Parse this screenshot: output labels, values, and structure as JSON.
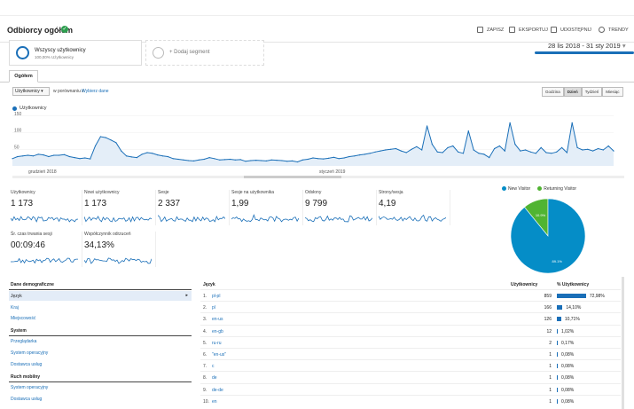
{
  "header": {
    "title": "Odbiorcy ogółem",
    "tools": [
      "ZAPISZ",
      "EKSPORTUJ",
      "UDOSTĘPNIJ",
      "TRENDY"
    ]
  },
  "segments": {
    "active_name": "Wszyscy użytkownicy",
    "active_sub": "100,00% Użytkownicy",
    "add_label": "+ Dodaj segment"
  },
  "date_range": "28 lis 2018 - 31 sty 2019",
  "tabs": [
    "Ogółem"
  ],
  "controls": {
    "metric_select": "Użytkownicy",
    "compare_text": "w porównaniu z",
    "compare_link": "Wybierz dane",
    "periods": [
      "Godzina",
      "Dzień",
      "Tydzień",
      "Miesiąc"
    ],
    "active_period": "Dzień"
  },
  "chart_data": {
    "type": "line",
    "series": [
      {
        "name": "Użytkownicy",
        "values": [
          22,
          28,
          30,
          32,
          30,
          35,
          33,
          28,
          32,
          32,
          34,
          28,
          25,
          22,
          24,
          21,
          60,
          88,
          85,
          78,
          70,
          45,
          30,
          27,
          25,
          35,
          40,
          38,
          33,
          30,
          28,
          22,
          20,
          18,
          16,
          15,
          18,
          20,
          25,
          22,
          18,
          19,
          20,
          18,
          19,
          14,
          16,
          17,
          16,
          15,
          18,
          17,
          16,
          14,
          15,
          12,
          18,
          20,
          24,
          22,
          21,
          23,
          26,
          22,
          24,
          28,
          30,
          33,
          35,
          38,
          42,
          45,
          48,
          50,
          52,
          45,
          40,
          50,
          58,
          48,
          120,
          65,
          42,
          40,
          55,
          60,
          42,
          38,
          105,
          48,
          38,
          35,
          25,
          52,
          60,
          45,
          130,
          65,
          45,
          48,
          42,
          38,
          55,
          40,
          38,
          42,
          55,
          40,
          130,
          55,
          48,
          50,
          45,
          52,
          48,
          60,
          45
        ]
      }
    ],
    "x_ticks": [
      "grudzień 2018",
      "styczeń 2019"
    ],
    "y_ticks": [
      50,
      100,
      150
    ],
    "ylim": [
      0,
      160
    ],
    "grid": true,
    "legend": "top-left"
  },
  "metrics": [
    {
      "label": "Użytkownicy",
      "value": "1 173"
    },
    {
      "label": "Nowi użytkownicy",
      "value": "1 173"
    },
    {
      "label": "Sesje",
      "value": "2 337"
    },
    {
      "label": "Sesje na użytkownika",
      "value": "1,99"
    },
    {
      "label": "Odsłony",
      "value": "9 799"
    },
    {
      "label": "Strony/sesja",
      "value": "4,19"
    },
    {
      "label": "Śr. czas trwania sesji",
      "value": "00:09:46"
    },
    {
      "label": "Współczynnik odrzuceń",
      "value": "34,13%"
    }
  ],
  "pie": {
    "legend": [
      "New Visitor",
      "Returning Visitor"
    ],
    "colors": [
      "#058dc7",
      "#50b432"
    ],
    "values": [
      89.1,
      10.9
    ],
    "labels": [
      "89.1%",
      "10.9%"
    ]
  },
  "dimensions": {
    "demographic_title": "Dane demograficzne",
    "demographic_items": [
      "Język",
      "Kraj",
      "Miejscowość"
    ],
    "system_title": "System",
    "system_items": [
      "Przeglądarka",
      "System operacyjny",
      "Dostawca usług"
    ],
    "mobile_title": "Ruch mobilny",
    "mobile_items": [
      "System operacyjny",
      "Dostawca usług"
    ]
  },
  "table": {
    "headers": [
      "Język",
      "Użytkownicy",
      "% Użytkownicy"
    ],
    "rows": [
      {
        "num": "1.",
        "lang": "pl-pl",
        "users": "859",
        "pct": "72,98%",
        "frac": 0.7298
      },
      {
        "num": "2.",
        "lang": "pl",
        "users": "166",
        "pct": "14,10%",
        "frac": 0.141
      },
      {
        "num": "3.",
        "lang": "en-us",
        "users": "126",
        "pct": "10,71%",
        "frac": 0.1071
      },
      {
        "num": "4.",
        "lang": "en-gb",
        "users": "12",
        "pct": "1,02%",
        "frac": 0.0102
      },
      {
        "num": "5.",
        "lang": "ru-ru",
        "users": "2",
        "pct": "0,17%",
        "frac": 0.0017
      },
      {
        "num": "6.",
        "lang": "\"en-us\"",
        "users": "1",
        "pct": "0,08%",
        "frac": 0.0008
      },
      {
        "num": "7.",
        "lang": "c",
        "users": "1",
        "pct": "0,08%",
        "frac": 0.0008
      },
      {
        "num": "8.",
        "lang": "de",
        "users": "1",
        "pct": "0,08%",
        "frac": 0.0008
      },
      {
        "num": "9.",
        "lang": "de-de",
        "users": "1",
        "pct": "0,08%",
        "frac": 0.0008
      },
      {
        "num": "10.",
        "lang": "en",
        "users": "1",
        "pct": "0,08%",
        "frac": 0.0008
      }
    ]
  }
}
